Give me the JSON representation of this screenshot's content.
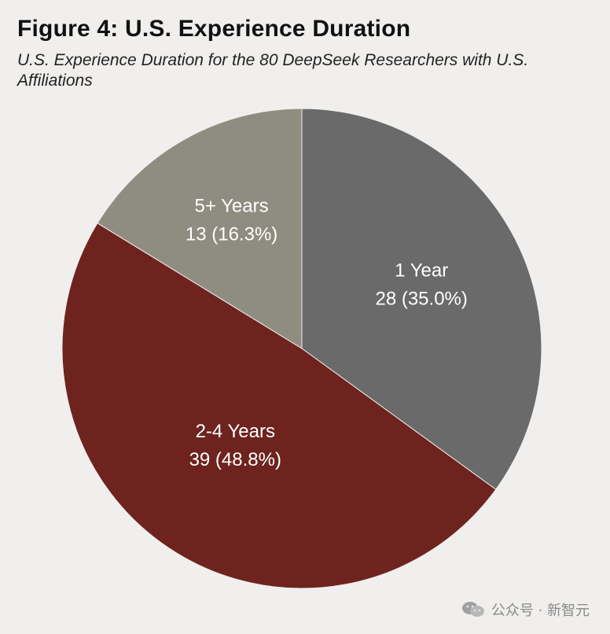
{
  "chart_data": {
    "type": "pie",
    "title": "Figure 4: U.S. Experience Duration",
    "subtitle": "U.S. Experience Duration for the 80 DeepSeek Researchers with U.S. Affiliations",
    "total": 80,
    "slices": [
      {
        "label": "1 Year",
        "value": 28,
        "value_text": "28 (35.0%)",
        "percent": 35.0,
        "color": "#6a6a6a"
      },
      {
        "label": "2-4 Years",
        "value": 39,
        "value_text": "39 (48.8%)",
        "percent": 48.8,
        "color": "#6e231f"
      },
      {
        "label": "5+ Years",
        "value": 13,
        "value_text": "13 (16.3%)",
        "percent": 16.3,
        "color": "#8f8d80"
      }
    ],
    "start": "12 o'clock",
    "direction": "clockwise"
  },
  "watermark": {
    "text": "公众号 · 新智元",
    "icon": "wechat-icon"
  },
  "colors": {
    "background": "#f0efed"
  }
}
